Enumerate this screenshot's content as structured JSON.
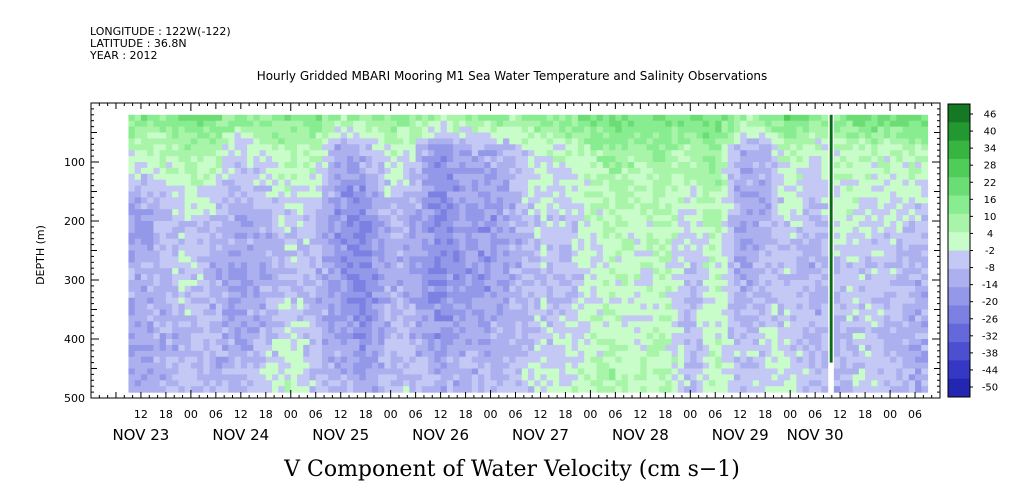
{
  "header": {
    "longitude": "LONGITUDE : 122W(-122)",
    "latitude": "LATITUDE : 36.8N",
    "year": "YEAR : 2012"
  },
  "chart_data": {
    "type": "heatmap",
    "title": "Hourly Gridded MBARI Mooring M1 Sea Water Temperature and Salinity Observations",
    "xlabel_title": "V Component of Water Velocity (cm s−1)",
    "ylabel": "DEPTH (m)",
    "y_axis": {
      "reversed": true,
      "range": [
        0,
        500
      ],
      "ticks": [
        100,
        200,
        300,
        400,
        500
      ],
      "tick_labels": [
        "100",
        "200",
        "300",
        "400",
        "500"
      ]
    },
    "x_axis": {
      "start": "2012-11-22T00:00",
      "end": "2012-11-30T12:00",
      "hour_labels": [
        {
          "h": 12,
          "t": "12"
        },
        {
          "h": 18,
          "t": "18"
        },
        {
          "h": 24,
          "t": "00"
        },
        {
          "h": 30,
          "t": "06"
        },
        {
          "h": 36,
          "t": "12"
        },
        {
          "h": 42,
          "t": "18"
        },
        {
          "h": 48,
          "t": "00"
        },
        {
          "h": 54,
          "t": "06"
        },
        {
          "h": 60,
          "t": "12"
        },
        {
          "h": 66,
          "t": "18"
        },
        {
          "h": 72,
          "t": "00"
        },
        {
          "h": 78,
          "t": "06"
        },
        {
          "h": 84,
          "t": "12"
        },
        {
          "h": 90,
          "t": "18"
        },
        {
          "h": 96,
          "t": "00"
        },
        {
          "h": 102,
          "t": "06"
        },
        {
          "h": 108,
          "t": "12"
        },
        {
          "h": 114,
          "t": "18"
        },
        {
          "h": 120,
          "t": "00"
        },
        {
          "h": 126,
          "t": "06"
        },
        {
          "h": 132,
          "t": "12"
        },
        {
          "h": 138,
          "t": "18"
        },
        {
          "h": 144,
          "t": "00"
        },
        {
          "h": 150,
          "t": "06"
        },
        {
          "h": 156,
          "t": "12"
        },
        {
          "h": 162,
          "t": "18"
        },
        {
          "h": 168,
          "t": "00"
        },
        {
          "h": 174,
          "t": "06"
        },
        {
          "h": 180,
          "t": "12"
        },
        {
          "h": 186,
          "t": "18"
        },
        {
          "h": 192,
          "t": "00"
        },
        {
          "h": 198,
          "t": "06"
        }
      ],
      "day_labels": [
        {
          "h": 12,
          "t": "NOV 23"
        },
        {
          "h": 36,
          "t": "NOV 24"
        },
        {
          "h": 60,
          "t": "NOV 25"
        },
        {
          "h": 84,
          "t": "NOV 26"
        },
        {
          "h": 108,
          "t": "NOV 27"
        },
        {
          "h": 132,
          "t": "NOV 28"
        },
        {
          "h": 156,
          "t": "NOV 29"
        },
        {
          "h": 174,
          "t": "NOV 30"
        }
      ]
    },
    "data_extent": {
      "hour_start": 9,
      "hour_end": 201,
      "depth_top": 20,
      "depth_bottom": 485
    },
    "data_gap": {
      "hour_start": 177.5,
      "hour_end": 178.2,
      "depth_top": 440,
      "note": ""
    },
    "time_columns": [
      {
        "hour": 12,
        "profile": [
          14,
          2,
          -16,
          -10,
          -14,
          -12
        ]
      },
      {
        "hour": 18,
        "profile": [
          12,
          4,
          -10,
          -6,
          -12,
          -10
        ]
      },
      {
        "hour": 24,
        "profile": [
          18,
          8,
          -4,
          -2,
          -8,
          -6
        ]
      },
      {
        "hour": 30,
        "profile": [
          16,
          4,
          -8,
          -12,
          -10,
          -8
        ]
      },
      {
        "hour": 36,
        "profile": [
          10,
          -6,
          -12,
          -14,
          -12,
          -8
        ]
      },
      {
        "hour": 42,
        "profile": [
          12,
          2,
          -10,
          -12,
          -8,
          -4
        ]
      },
      {
        "hour": 48,
        "profile": [
          14,
          6,
          -4,
          -6,
          0,
          2
        ]
      },
      {
        "hour": 54,
        "profile": [
          16,
          4,
          -6,
          -10,
          -8,
          -6
        ]
      },
      {
        "hour": 60,
        "profile": [
          8,
          -14,
          -18,
          -16,
          -14,
          -10
        ]
      },
      {
        "hour": 66,
        "profile": [
          10,
          -10,
          -20,
          -22,
          -18,
          -12
        ]
      },
      {
        "hour": 72,
        "profile": [
          14,
          2,
          -8,
          -10,
          -8,
          -6
        ]
      },
      {
        "hour": 78,
        "profile": [
          12,
          -4,
          -12,
          -14,
          -10,
          -6
        ]
      },
      {
        "hour": 84,
        "profile": [
          6,
          -20,
          -22,
          -20,
          -16,
          -12
        ]
      },
      {
        "hour": 90,
        "profile": [
          10,
          -10,
          -14,
          -16,
          -12,
          -8
        ]
      },
      {
        "hour": 96,
        "profile": [
          12,
          -12,
          -18,
          -16,
          -12,
          -8
        ]
      },
      {
        "hour": 102,
        "profile": [
          10,
          -6,
          -10,
          -12,
          -8,
          -6
        ]
      },
      {
        "hour": 108,
        "profile": [
          14,
          2,
          -4,
          -6,
          -4,
          -2
        ]
      },
      {
        "hour": 114,
        "profile": [
          12,
          0,
          -6,
          -8,
          -4,
          0
        ]
      },
      {
        "hour": 120,
        "profile": [
          16,
          6,
          0,
          -2,
          0,
          4
        ]
      },
      {
        "hour": 126,
        "profile": [
          18,
          10,
          4,
          2,
          4,
          8
        ]
      },
      {
        "hour": 132,
        "profile": [
          16,
          6,
          2,
          0,
          -2,
          2
        ]
      },
      {
        "hour": 138,
        "profile": [
          18,
          8,
          4,
          2,
          4,
          6
        ]
      },
      {
        "hour": 144,
        "profile": [
          16,
          4,
          -4,
          -8,
          -10,
          -8
        ]
      },
      {
        "hour": 150,
        "profile": [
          20,
          12,
          6,
          4,
          2,
          4
        ]
      },
      {
        "hour": 156,
        "profile": [
          10,
          -12,
          -14,
          -12,
          -8,
          -6
        ]
      },
      {
        "hour": 162,
        "profile": [
          12,
          -10,
          -12,
          -8,
          -4,
          -2
        ]
      },
      {
        "hour": 168,
        "profile": [
          20,
          6,
          -2,
          -6,
          -4,
          0
        ]
      },
      {
        "hour": 174,
        "profile": [
          14,
          -2,
          -10,
          -12,
          -10,
          -6
        ]
      },
      {
        "hour": 180,
        "profile": [
          14,
          2,
          0,
          -4,
          -8,
          -10
        ]
      },
      {
        "hour": 186,
        "profile": [
          18,
          4,
          -2,
          -6,
          -4,
          -2
        ]
      },
      {
        "hour": 192,
        "profile": [
          16,
          2,
          -4,
          -6,
          -8,
          -6
        ]
      },
      {
        "hour": 198,
        "profile": [
          20,
          4,
          -6,
          -10,
          -12,
          -12
        ]
      }
    ],
    "profile_depths": [
      20,
      80,
      200,
      300,
      400,
      485
    ],
    "colorbar": {
      "labels": [
        "46",
        "40",
        "34",
        "28",
        "22",
        "16",
        "10",
        "4",
        "-2",
        "-8",
        "-14",
        "-20",
        "-26",
        "-32",
        "-38",
        "-44",
        "-50"
      ],
      "min": -50,
      "max": 46,
      "step": 6,
      "colors": {
        "pos": [
          "#c8fcc8",
          "#a8f4a8",
          "#88ec90",
          "#6cdc74",
          "#50cc58",
          "#38b440",
          "#249830",
          "#147824",
          "#085818",
          "#043a10"
        ],
        "neg": [
          "#c4c8f4",
          "#acb0ee",
          "#9498e8",
          "#7c80e2",
          "#6468da",
          "#4c50d0",
          "#3438c4",
          "#2226b0",
          "#141890",
          "#0a0c6c",
          "#040648"
        ]
      }
    }
  }
}
